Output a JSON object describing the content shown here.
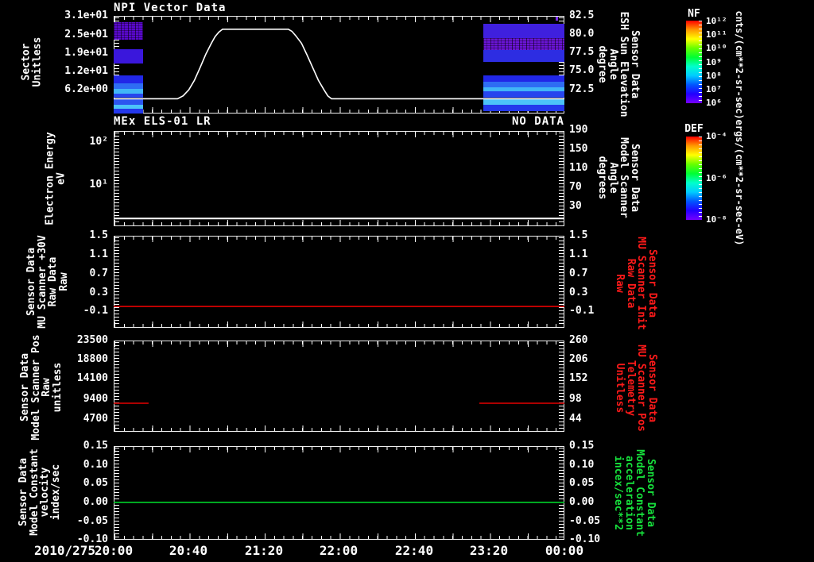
{
  "chart_data": {
    "type": "multi-panel-timeseries",
    "x_axis": {
      "date_label": "2010/275",
      "tick_labels": [
        "20:00",
        "20:40",
        "21:20",
        "22:00",
        "22:40",
        "23:20",
        "00:00"
      ],
      "x_unit": "minutes from 2010/275 20:00",
      "x_range": [
        0,
        240
      ]
    },
    "panels": [
      {
        "id": "npi-vector",
        "type": "heatmap+line",
        "title": "NPI Vector Data",
        "left_axis": {
          "label": "Sector\nUnitless",
          "ticks": [
            "3.1e+01",
            "2.5e+01",
            "1.9e+01",
            "1.2e+01",
            "6.2e+00"
          ]
        },
        "right_axis": {
          "label": "Sensor Data\nESH Sun Elevation\nAngle\ndegree",
          "ticks": [
            "82.5",
            "80.0",
            "77.5",
            "75.0",
            "72.5"
          ],
          "range": [
            69.7,
            82.5
          ]
        },
        "line": {
          "name": "ESH Sun Elevation Angle",
          "color": "#ffffff",
          "t": [
            0,
            34,
            37,
            40,
            43,
            46,
            49,
            52,
            54,
            56,
            58,
            93,
            95,
            97,
            100,
            103,
            106,
            109,
            112,
            114,
            116,
            240
          ],
          "v": [
            71.3,
            71.3,
            71.7,
            72.5,
            73.8,
            75.5,
            77.3,
            78.8,
            79.7,
            80.3,
            80.7,
            80.7,
            80.4,
            79.8,
            78.8,
            77.2,
            75.5,
            73.8,
            72.5,
            71.7,
            71.3,
            71.3
          ]
        },
        "heatmap": {
          "colorscale": "NF rainbow",
          "blocks": [
            {
              "t0": 0,
              "t1": 15.7,
              "rows": [
                {
                  "y": 8,
                  "h": 22,
                  "c": "#5a08cf",
                  "n": 1
                },
                {
                  "y": 42,
                  "h": 18,
                  "c": "#3a17dc"
                },
                {
                  "y": 75,
                  "h": 10,
                  "c": "#2127e8"
                },
                {
                  "y": 85,
                  "h": 7,
                  "c": "#2e6df3"
                },
                {
                  "y": 92,
                  "h": 6,
                  "c": "#41b6f7"
                },
                {
                  "y": 98,
                  "h": 5,
                  "c": "#2746ee"
                },
                {
                  "y": 105,
                  "h": 7,
                  "c": "#2c55f0"
                },
                {
                  "y": 112,
                  "h": 5,
                  "c": "#4cc3f9"
                },
                {
                  "y": 117,
                  "h": 6,
                  "c": "#2438ec"
                }
              ]
            },
            {
              "t0": 196.8,
              "t1": 240,
              "rows": [
                {
                  "y": 10,
                  "h": 18,
                  "c": "#3f20de"
                },
                {
                  "y": 28,
                  "h": 15,
                  "c": "#6a14d6",
                  "n": 1
                },
                {
                  "y": 43,
                  "h": 15,
                  "c": "#2d2de2"
                },
                {
                  "y": 75,
                  "h": 8,
                  "c": "#2127e8"
                },
                {
                  "y": 83,
                  "h": 7,
                  "c": "#2e6df3"
                },
                {
                  "y": 90,
                  "h": 5,
                  "c": "#41b6f7"
                },
                {
                  "y": 95,
                  "h": 8,
                  "c": "#2746ee"
                },
                {
                  "y": 105,
                  "h": 7,
                  "c": "#4cc3f9"
                },
                {
                  "y": 112,
                  "h": 8,
                  "c": "#2438ec"
                }
              ]
            },
            {
              "t0": 235.2,
              "t1": 236.8,
              "rows": [
                {
                  "y": 1,
                  "h": 5,
                  "c": "#7a2bee"
                }
              ]
            }
          ]
        }
      },
      {
        "id": "mex-els",
        "type": "empty-log-panel",
        "title": "MEx ELS-01 LR",
        "no_data_label": "NO DATA",
        "left_axis": {
          "label": "Electron Energy\neV",
          "ticks": [
            "10²",
            "10¹"
          ],
          "scale": "log"
        },
        "right_axis": {
          "label": "Sensor Data\nModel Scanner\nAngle\ndegrees",
          "ticks": [
            "190",
            "150",
            "110",
            "70",
            "30"
          ]
        },
        "line": {
          "name": "baseline",
          "color": "#ffffff",
          "value_ev": 1.6,
          "t_range": [
            0,
            240
          ]
        }
      },
      {
        "id": "mu-scanner-30v",
        "type": "line",
        "left_axis": {
          "label": "Sensor Data\nMU Scanner +30V\nRaw Data\nRaw",
          "ticks": [
            "1.5",
            "1.1",
            "0.7",
            "0.3",
            "-0.1"
          ]
        },
        "right_axis": {
          "label": "Sensor Data\nMU Scanner Init\nRaw Data\nRaw",
          "ticks": [
            "1.5",
            "1.1",
            "0.7",
            "0.3",
            "-0.1"
          ],
          "color": "#ff1a1a"
        },
        "line": {
          "color": "#e60000",
          "value": 0.0,
          "t_range": [
            0,
            240
          ]
        }
      },
      {
        "id": "model-scanner-pos",
        "type": "segments",
        "left_axis": {
          "label": "Sensor Data\nModel Scanner Pos\nRaw\nunitless",
          "ticks": [
            "23500",
            "18800",
            "14100",
            "9400",
            "4700"
          ]
        },
        "right_axis": {
          "label": "Sensor Data\nMU Scanner Pos\nTelemetry\nUnitless",
          "ticks": [
            "260",
            "206",
            "152",
            "98",
            "44"
          ],
          "color": "#ff1a1a"
        },
        "segments": {
          "color": "#e60000",
          "value_raw": 8500,
          "value_telemetry": 88,
          "t_ranges": [
            [
              0,
              18.6
            ],
            [
              194.7,
              240
            ]
          ]
        }
      },
      {
        "id": "model-constant",
        "type": "line",
        "left_axis": {
          "label": "Sensor Data\nModel Constant\nvelocity\nindex/sec",
          "ticks": [
            "0.15",
            "0.10",
            "0.05",
            "0.00",
            "-0.05",
            "-0.10"
          ]
        },
        "right_axis": {
          "label": "Sensor Data\nModel Constant\nacceleration\nincex/sec**2",
          "ticks": [
            "0.15",
            "0.10",
            "0.05",
            "0.00",
            "-0.05",
            "-0.10"
          ],
          "color": "#16e03c"
        },
        "line": {
          "color": "#00d22a",
          "value": 0.0,
          "t_range": [
            0,
            240
          ]
        }
      }
    ],
    "colorbars": [
      {
        "name": "NF",
        "unit": "cnts/(cm**2-sr-sec)",
        "ticks": [
          "10¹²",
          "10¹¹",
          "10¹⁰",
          "10⁹",
          "10⁸",
          "10⁷",
          "10⁶"
        ],
        "gradient": [
          "#ff0000",
          "#ff9900",
          "#ffff00",
          "#66ff00",
          "#00ff33",
          "#00ffcc",
          "#00ccff",
          "#0055ff",
          "#2200ff",
          "#7700ff"
        ]
      },
      {
        "name": "DEF",
        "unit": "ergs/(cm**2-sr-sec-eV)",
        "ticks": [
          "10⁻⁴",
          "10⁻⁶",
          "10⁻⁸"
        ],
        "gradient": [
          "#ff0000",
          "#ff9900",
          "#ffff00",
          "#66ff00",
          "#00ff33",
          "#00ffcc",
          "#00ccff",
          "#0055ff",
          "#2200ff",
          "#7700ff"
        ]
      }
    ]
  }
}
